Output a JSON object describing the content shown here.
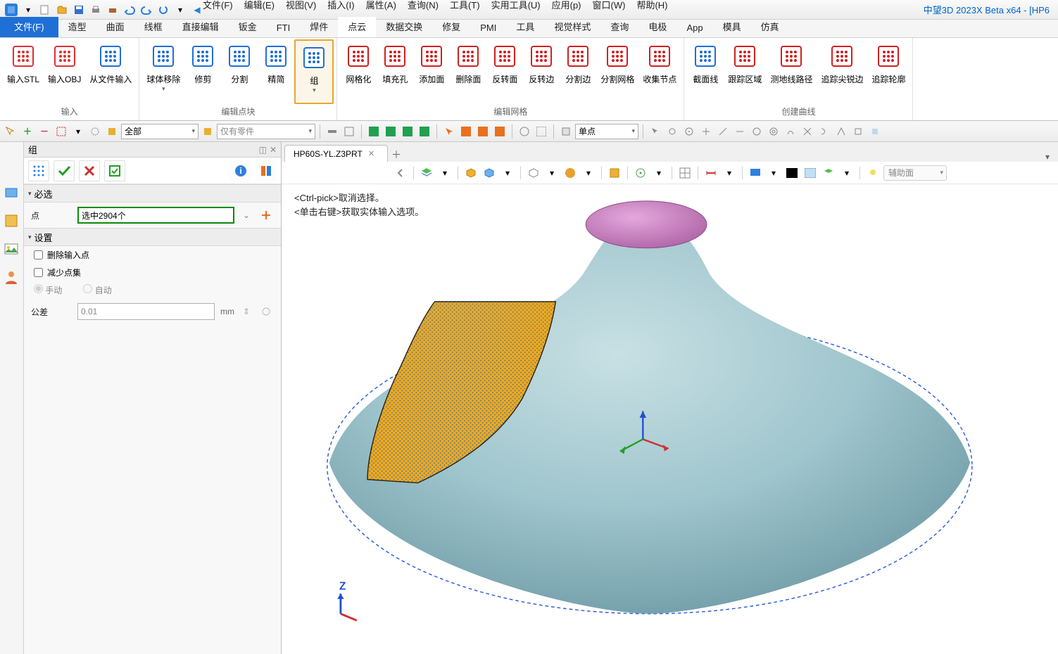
{
  "app": {
    "title": "中望3D 2023X Beta x64 - [HP6"
  },
  "menus": [
    "文件(F)",
    "编辑(E)",
    "视图(V)",
    "插入(I)",
    "属性(A)",
    "查询(N)",
    "工具(T)",
    "实用工具(U)",
    "应用(p)",
    "窗口(W)",
    "帮助(H)"
  ],
  "ribbonTabs": [
    {
      "label": "文件(F)",
      "kind": "file"
    },
    {
      "label": "造型"
    },
    {
      "label": "曲面"
    },
    {
      "label": "线框"
    },
    {
      "label": "直接编辑"
    },
    {
      "label": "钣金"
    },
    {
      "label": "FTI"
    },
    {
      "label": "焊件"
    },
    {
      "label": "点云",
      "active": true
    },
    {
      "label": "数据交换"
    },
    {
      "label": "修复"
    },
    {
      "label": "PMI"
    },
    {
      "label": "工具"
    },
    {
      "label": "视觉样式"
    },
    {
      "label": "查询"
    },
    {
      "label": "电极"
    },
    {
      "label": "App"
    },
    {
      "label": "模具"
    },
    {
      "label": "仿真"
    }
  ],
  "ribbon": {
    "groups": [
      {
        "label": "输入",
        "buttons": [
          {
            "name": "import-stl",
            "label": "输入STL",
            "color": "#e03030"
          },
          {
            "name": "import-obj",
            "label": "输入OBJ",
            "color": "#e03030"
          },
          {
            "name": "import-file",
            "label": "从文件输入",
            "color": "#1e6fd6"
          }
        ]
      },
      {
        "label": "编辑点块",
        "buttons": [
          {
            "name": "sphere-remove",
            "label": "球体移除",
            "color": "#1e6fd6",
            "drop": true
          },
          {
            "name": "trim",
            "label": "修剪",
            "color": "#1e6fd6"
          },
          {
            "name": "split",
            "label": "分割",
            "color": "#1e6fd6"
          },
          {
            "name": "simplify",
            "label": "精简",
            "color": "#1e6fd6"
          },
          {
            "name": "group",
            "label": "组",
            "color": "#1e6fd6",
            "selected": true,
            "drop": true
          }
        ]
      },
      {
        "label": "编辑网格",
        "buttons": [
          {
            "name": "meshify",
            "label": "网格化",
            "color": "#d02020"
          },
          {
            "name": "fill-hole",
            "label": "填充孔",
            "color": "#d02020"
          },
          {
            "name": "add-face",
            "label": "添加面",
            "color": "#d02020"
          },
          {
            "name": "delete-face",
            "label": "删除面",
            "color": "#d02020"
          },
          {
            "name": "flip-face",
            "label": "反转面",
            "color": "#d02020"
          },
          {
            "name": "flip-edge",
            "label": "反转边",
            "color": "#d02020"
          },
          {
            "name": "split-edge",
            "label": "分割边",
            "color": "#d02020"
          },
          {
            "name": "split-mesh",
            "label": "分割网格",
            "color": "#d02020"
          },
          {
            "name": "collect-node",
            "label": "收集节点",
            "color": "#d02020"
          }
        ]
      },
      {
        "label": "创建曲线",
        "buttons": [
          {
            "name": "section-line",
            "label": "截面线",
            "color": "#1e6fd6"
          },
          {
            "name": "track-region",
            "label": "跟踪区域",
            "color": "#d02020"
          },
          {
            "name": "geodesic",
            "label": "测地线路径",
            "color": "#d02020"
          },
          {
            "name": "track-sharp",
            "label": "追踪尖锐边",
            "color": "#d02020"
          },
          {
            "name": "track-outline",
            "label": "追踪轮廓",
            "color": "#d02020"
          }
        ]
      }
    ]
  },
  "secondaryTB": {
    "selectMode": "全部",
    "filter": "仅有零件",
    "pickMode": "单点"
  },
  "panel": {
    "title": "组",
    "section1": "必选",
    "pointsLabel": "点",
    "pointsValue": "选中2904个",
    "section2": "设置",
    "chk1": "删除输入点",
    "chk2": "减少点集",
    "radio1": "手动",
    "radio2": "自动",
    "tolLabel": "公差",
    "tolValue": "0.01",
    "tolUnit": "mm"
  },
  "docTab": "HP60S-YL.Z3PRT",
  "viewHints": {
    "l1": "<Ctrl-pick>取消选择。",
    "l2": "<单击右键>获取实体输入选项。"
  },
  "viewCombo": "辅助面",
  "colors": {
    "modelBody": "#9fc5cd",
    "modelBodyDark": "#6f9ba6",
    "modelTop": "#c77fc0",
    "modelTopEdge": "#8a4a84",
    "outline": "#2a5bd9",
    "selection": "#f0a818",
    "axisX": "#d03030",
    "axisY": "#20a020",
    "axisZ": "#2050d0"
  }
}
